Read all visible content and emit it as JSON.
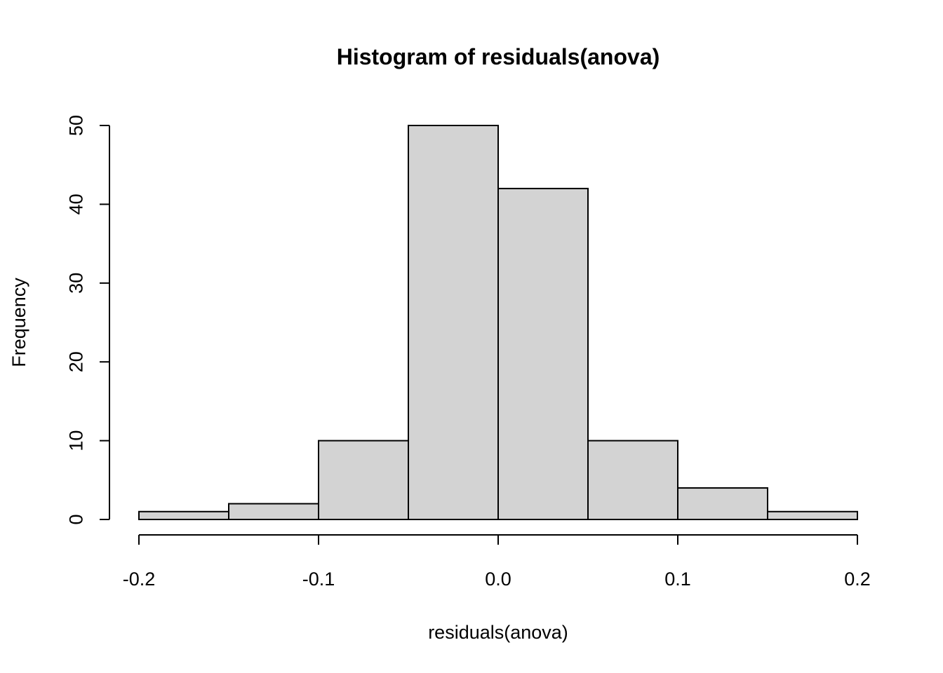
{
  "chart_data": {
    "type": "bar",
    "title": "Histogram of residuals(anova)",
    "xlabel": "residuals(anova)",
    "ylabel": "Frequency",
    "bin_edges": [
      -0.2,
      -0.15,
      -0.1,
      -0.05,
      0.0,
      0.05,
      0.1,
      0.15,
      0.2
    ],
    "values": [
      1,
      2,
      10,
      50,
      42,
      10,
      4,
      1
    ],
    "xlim": [
      -0.2,
      0.2
    ],
    "ylim": [
      0,
      50
    ],
    "x_ticks": [
      -0.2,
      -0.1,
      0.0,
      0.1,
      0.2
    ],
    "x_tick_labels": [
      "-0.2",
      "-0.1",
      "0.0",
      "0.1",
      "0.2"
    ],
    "y_ticks": [
      0,
      10,
      20,
      30,
      40,
      50
    ],
    "y_tick_labels": [
      "0",
      "10",
      "20",
      "30",
      "40",
      "50"
    ],
    "grid": false,
    "bar_color": "#d3d3d3",
    "edge_color": "#000000"
  }
}
